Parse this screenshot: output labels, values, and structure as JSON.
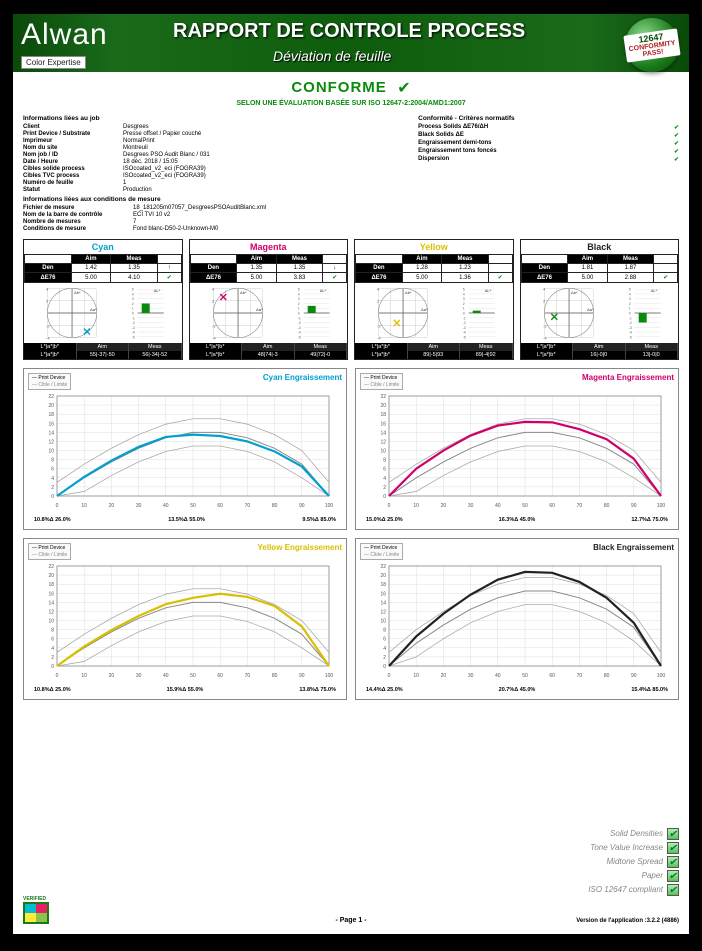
{
  "header": {
    "logo_main": "Alwan",
    "logo_sub": "Color Expertise",
    "title": "RAPPORT DE CONTROLE PROCESS",
    "subtitle": "Déviation de feuille",
    "badge_num": "12647",
    "badge_text": "CONFORMITY PASS!"
  },
  "status": {
    "label": "CONFORME",
    "iso_line": "SELON UNE ÉVALUATION BASÉE SUR ISO 12647-2:2004/AMD1:2007"
  },
  "info_job": {
    "title": "Informations liées au job",
    "rows": [
      {
        "label": "Client",
        "value": "Desgrees"
      },
      {
        "label": "Print Device / Substrate",
        "value": "Presse offset / Papier couché"
      },
      {
        "label": "Imprimeur",
        "value": "NormalPrint"
      },
      {
        "label": "Nom du site",
        "value": "Montreuil"
      },
      {
        "label": "Nom job / ID",
        "value": "Desgrees PSO Audit Blanc / 031"
      },
      {
        "label": "Date / Heure",
        "value": "18 déc. 2018 / 15:05"
      },
      {
        "label": "Cibles solide process",
        "value": "ISOcoated_v2_eci (FOGRA39)"
      },
      {
        "label": "Cibles TVC process",
        "value": "ISOcoated_v2_eci (FOGRA39)"
      },
      {
        "label": "Numéro de feuille",
        "value": "1"
      },
      {
        "label": "Statut",
        "value": "Production"
      }
    ]
  },
  "info_cond": {
    "title": "Informations liées aux conditions de mesure",
    "rows": [
      {
        "label": "Fichier de mesure",
        "value": "18_181205m07057_DesgreesPSOAuditBlanc.xml"
      },
      {
        "label": "Nom de la barre de contrôle",
        "value": "ECI TVI 10 v2"
      },
      {
        "label": "Nombre de mesures",
        "value": "7"
      },
      {
        "label": "Conditions de mesure",
        "value": "Fond blanc-D50-2-Unknown-M0"
      }
    ]
  },
  "criteria": {
    "title": "Conformité - Critères normatifs",
    "rows": [
      {
        "label": "Process Solids ΔE76/ΔH",
        "pass": true
      },
      {
        "label": "Black Solids ΔE",
        "pass": true
      },
      {
        "label": "Engraissement demi-tons",
        "pass": true
      },
      {
        "label": "Engraissement tons foncés",
        "pass": true
      },
      {
        "label": "Dispersion",
        "pass": true
      }
    ]
  },
  "inks": [
    {
      "name": "Cyan",
      "color": "#00a0d0",
      "den_aim": "1.42",
      "den_meas": "1.35",
      "den_arrow": "↑",
      "de_aim": "5.00",
      "de_meas": "4.10",
      "de_pass": true,
      "cross_x": 2.4,
      "cross_y": -3.0,
      "delta_L": 2.0,
      "delta_val": -0.8,
      "lab_aim": "55|-37|-50",
      "lab_meas": "56|-34|-52",
      "lab_hdr": "L*|a*|b*"
    },
    {
      "name": "Magenta",
      "color": "#d0006a",
      "den_aim": "1.35",
      "den_meas": "1.35",
      "den_arrow": "↓",
      "de_aim": "5.00",
      "de_meas": "3.83",
      "de_pass": true,
      "cross_x": -2.4,
      "cross_y": 2.6,
      "delta_L": 1.5,
      "delta_val": 0.5,
      "lab_aim": "48|74|-3",
      "lab_meas": "49|72|-0",
      "lab_hdr": "L*|a*|b*"
    },
    {
      "name": "Yellow",
      "color": "#d8c000",
      "den_aim": "1.28",
      "den_meas": "1.23",
      "den_arrow": "",
      "de_aim": "5.00",
      "de_meas": "1.36",
      "de_pass": true,
      "cross_x": -1.0,
      "cross_y": -1.6,
      "delta_L": 0.5,
      "delta_val": -0.3,
      "lab_aim": "89|-5|93",
      "lab_meas": "89|-4|92",
      "lab_hdr": "L*|a*|b*"
    },
    {
      "name": "Black",
      "color": "#222222",
      "den_aim": "1.81",
      "den_meas": "1.87",
      "den_arrow": "",
      "de_aim": "5.00",
      "de_meas": "2.88",
      "de_pass": true,
      "cross_x": -2.4,
      "cross_y": -0.6,
      "delta_L": -2.0,
      "delta_val": 0.2,
      "lab_aim": "16|-0|0",
      "lab_meas": "13|-0|0",
      "lab_hdr": "L*|a*|b*"
    }
  ],
  "ink_plot": {
    "range": 4,
    "ticks": [
      4,
      2,
      0,
      -2,
      -4
    ],
    "bar_range": 5,
    "dab_label": "Δb*",
    "daa_label": "Δa*",
    "dL_label": "ΔL*"
  },
  "tvi": {
    "ylim": [
      0,
      22
    ],
    "yticks": [
      0,
      2,
      4,
      6,
      8,
      10,
      12,
      14,
      16,
      18,
      20,
      22
    ],
    "xlim": [
      0,
      100
    ],
    "xticks": [
      0,
      10,
      20,
      30,
      40,
      50,
      60,
      70,
      80,
      90,
      100
    ],
    "legend1": "Print Device",
    "legend2": "Cible / Limite",
    "charts": [
      {
        "title": "Cyan Engraissement",
        "color": "#00a0d0",
        "footer": [
          "10.8%Δ 26.0%",
          "13.5%Δ 55.0%",
          "9.5%Δ 85.0%"
        ],
        "target": [
          0,
          4,
          7.5,
          10.5,
          12.8,
          14,
          14,
          12.8,
          10.5,
          7,
          0
        ],
        "measured": [
          0,
          4.2,
          7.8,
          10.8,
          13.0,
          13.5,
          13.2,
          12.0,
          9.8,
          6.5,
          0
        ]
      },
      {
        "title": "Magenta Engraissement",
        "color": "#d0006a",
        "footer": [
          "15.0%Δ 25.0%",
          "16.3%Δ 45.0%",
          "12.7%Δ 75.0%"
        ],
        "target": [
          0,
          4,
          7.5,
          10.5,
          12.8,
          14,
          14,
          12.8,
          10.5,
          7,
          0
        ],
        "measured": [
          0,
          6,
          10,
          13.3,
          15.5,
          16.3,
          16.2,
          14.7,
          12.5,
          8.2,
          0
        ]
      },
      {
        "title": "Yellow Engraissement",
        "color": "#d8c000",
        "footer": [
          "10.8%Δ 25.0%",
          "15.9%Δ 55.0%",
          "13.8%Δ 75.0%"
        ],
        "target": [
          0,
          4,
          7.5,
          10.5,
          12.8,
          14,
          14,
          12.8,
          10.5,
          7,
          0
        ],
        "measured": [
          0,
          4.3,
          7.9,
          11.0,
          13.6,
          15,
          15.9,
          15.2,
          13.2,
          8.7,
          0
        ]
      },
      {
        "title": "Black Engraissement",
        "color": "#222222",
        "footer": [
          "14.4%Δ 25.0%",
          "20.7%Δ 45.0%",
          "15.4%Δ 85.0%"
        ],
        "target": [
          0,
          5,
          9,
          12.5,
          15,
          16.5,
          16.5,
          15,
          12.5,
          8.5,
          0
        ],
        "measured": [
          0,
          6.5,
          11.5,
          15.7,
          19,
          20.7,
          20.5,
          18.5,
          15,
          9.5,
          0
        ]
      }
    ]
  },
  "footer_checks": [
    "Solid Densities",
    "Tone Value Increase",
    "Midtone Spread",
    "Paper",
    "ISO 12647 compliant"
  ],
  "footer": {
    "page": "- Page 1 -",
    "version": "Version de l'application :3.2.2 (4886)",
    "verified": "VERIFIED"
  }
}
